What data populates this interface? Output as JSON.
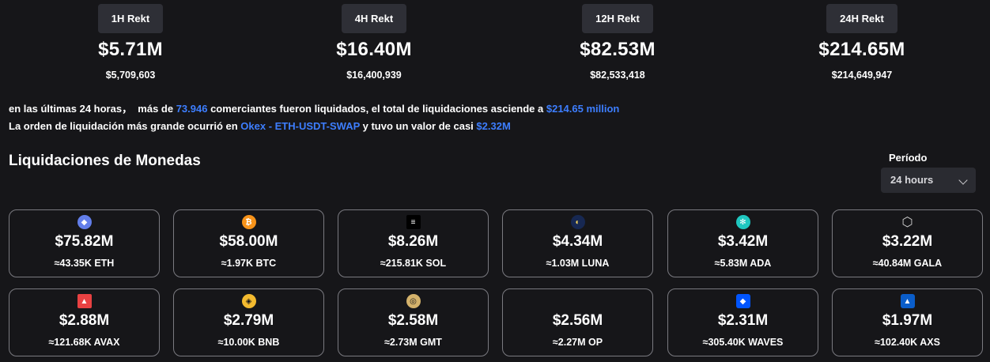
{
  "rekt": [
    {
      "label": "1H Rekt",
      "big": "$5.71M",
      "exact": "$5,709,603"
    },
    {
      "label": "4H Rekt",
      "big": "$16.40M",
      "exact": "$16,400,939"
    },
    {
      "label": "12H Rekt",
      "big": "$82.53M",
      "exact": "$82,533,418"
    },
    {
      "label": "24H Rekt",
      "big": "$214.65M",
      "exact": "$214,649,947"
    }
  ],
  "summary": {
    "line1_prefix": "en las últimas 24 horas，  más de ",
    "traders": "73.946",
    "line1_mid": " comerciantes fueron liquidados, el total de liquidaciones asciende a ",
    "total": "$214.65 million",
    "line2_prefix": "La orden de liquidación más grande ocurrió en ",
    "order_pair": "Okex - ETH-USDT-SWAP",
    "line2_mid": " y tuvo un valor de casi ",
    "order_value": "$2.32M"
  },
  "section_title": "Liquidaciones de Monedas",
  "period": {
    "label": "Período",
    "value": "24 hours"
  },
  "coins": [
    {
      "usd": "$75.82M",
      "amount": "≈43.35K ETH",
      "icon": "ethereum-icon",
      "color": "#627eea",
      "glyph": "◆"
    },
    {
      "usd": "$58.00M",
      "amount": "≈1.97K BTC",
      "icon": "bitcoin-icon",
      "color": "#f7931a",
      "glyph": "₿"
    },
    {
      "usd": "$8.26M",
      "amount": "≈215.81K SOL",
      "icon": "solana-icon",
      "color": "#000000",
      "glyph": "≡"
    },
    {
      "usd": "$4.34M",
      "amount": "≈1.03M LUNA",
      "icon": "terra-luna-icon",
      "color": "#172852",
      "glyph": "◐"
    },
    {
      "usd": "$3.42M",
      "amount": "≈5.83M ADA",
      "icon": "cardano-icon",
      "color": "#1fc7c0",
      "glyph": "✻"
    },
    {
      "usd": "$3.22M",
      "amount": "≈40.84M GALA",
      "icon": "gala-icon",
      "color": "#161619",
      "glyph": "⬡"
    },
    {
      "usd": "$2.88M",
      "amount": "≈121.68K AVAX",
      "icon": "avalanche-icon",
      "color": "#e84142",
      "glyph": "▲"
    },
    {
      "usd": "$2.79M",
      "amount": "≈10.00K BNB",
      "icon": "bnb-icon",
      "color": "#f3ba2f",
      "glyph": "◈"
    },
    {
      "usd": "$2.58M",
      "amount": "≈2.73M GMT",
      "icon": "stepn-gmt-icon",
      "color": "#d4b26b",
      "glyph": "◎"
    },
    {
      "usd": "$2.56M",
      "amount": "≈2.27M OP",
      "icon": "",
      "color": "",
      "glyph": ""
    },
    {
      "usd": "$2.31M",
      "amount": "≈305.40K WAVES",
      "icon": "waves-icon",
      "color": "#0155ff",
      "glyph": "◆"
    },
    {
      "usd": "$1.97M",
      "amount": "≈102.40K AXS",
      "icon": "axie-infinity-icon",
      "color": "#0a5dc9",
      "glyph": "▲"
    }
  ]
}
